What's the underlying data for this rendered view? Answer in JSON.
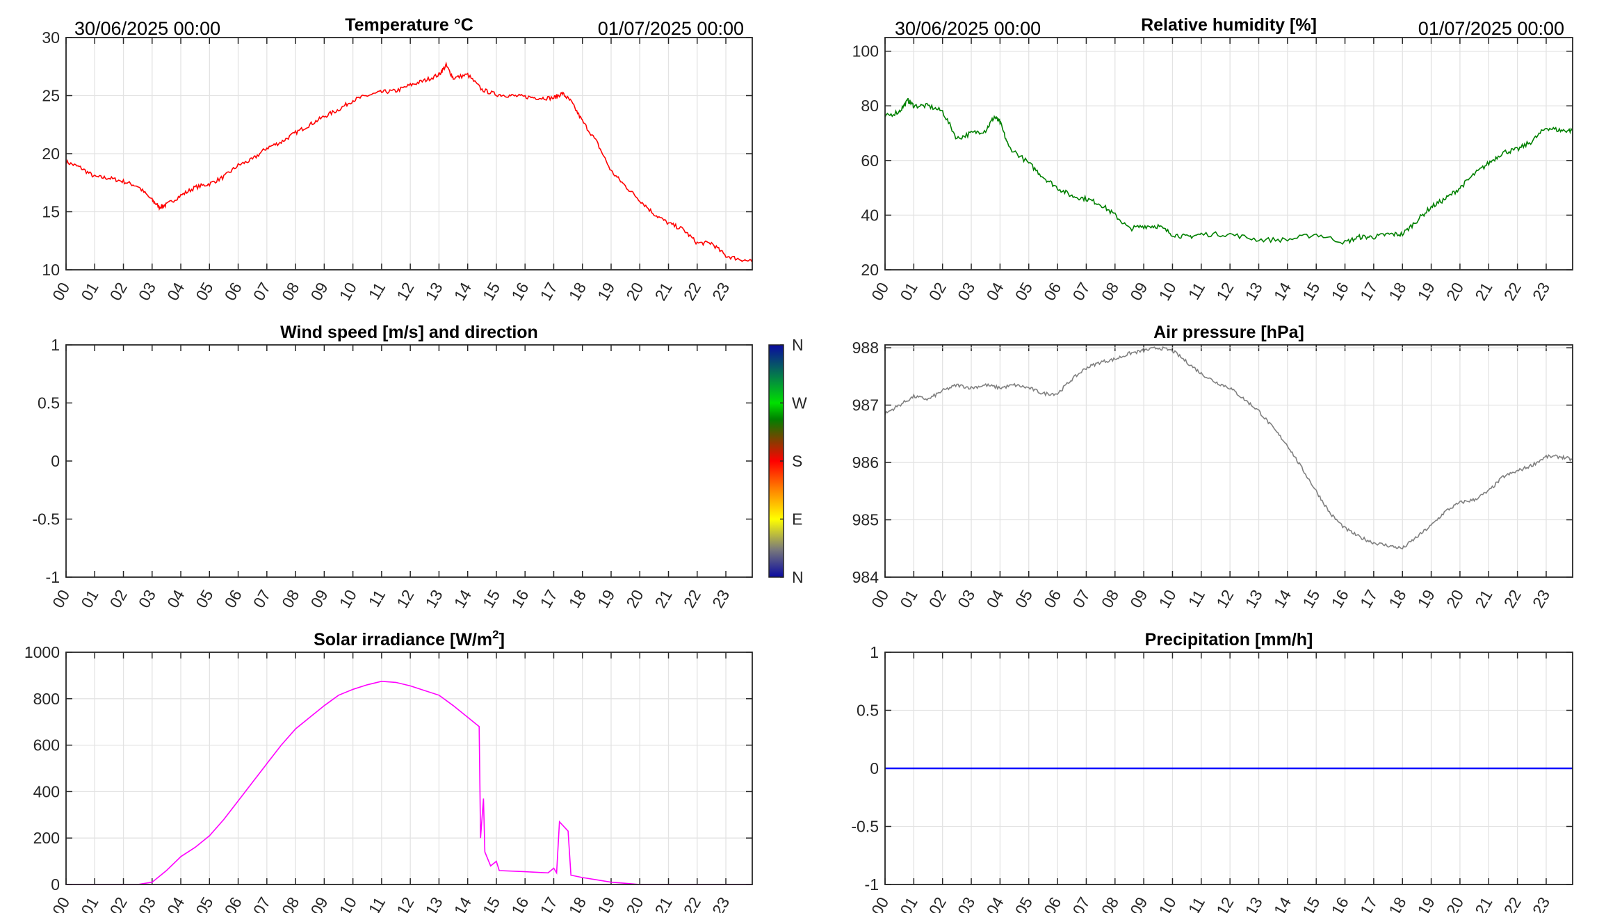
{
  "header": {
    "start_date": "30/06/2025 00:00",
    "end_date": "01/07/2025 00:00"
  },
  "hour_labels": [
    "00",
    "01",
    "02",
    "03",
    "04",
    "05",
    "06",
    "07",
    "08",
    "09",
    "10",
    "11",
    "12",
    "13",
    "14",
    "15",
    "16",
    "17",
    "18",
    "19",
    "20",
    "21",
    "22",
    "23"
  ],
  "colorbar": {
    "labels": [
      "N",
      "E",
      "S",
      "W",
      "N"
    ],
    "colors": [
      "#0a0aa0",
      "#7a7a7a",
      "#ffff00",
      "#ff8000",
      "#ff0000",
      "#008000",
      "#00e000",
      "#0a0aa0"
    ]
  },
  "chart_data": [
    {
      "id": "temperature",
      "type": "line",
      "title": "Temperature °C",
      "title_sup": "",
      "ylim": [
        10,
        30
      ],
      "yticks": [
        10,
        15,
        20,
        25,
        30
      ],
      "ytick_labels": [
        "10",
        "15",
        "20",
        "25",
        "30"
      ],
      "xlim": [
        0,
        23.92
      ],
      "color": "#ff0000",
      "grid": true,
      "x": [
        0,
        0.5,
        1,
        1.5,
        2,
        2.5,
        3,
        3.25,
        3.5,
        4,
        4.5,
        5,
        5.5,
        6,
        6.5,
        7,
        7.5,
        8,
        8.5,
        9,
        9.5,
        10,
        10.5,
        11,
        11.5,
        12,
        12.5,
        13,
        13.25,
        13.5,
        14,
        14.5,
        15,
        15.5,
        16,
        16.5,
        17,
        17.3,
        17.6,
        18,
        18.5,
        19,
        19.5,
        20,
        20.5,
        21,
        21.5,
        22,
        22.5,
        23,
        23.5,
        23.9
      ],
      "y": [
        19.3,
        18.8,
        18.0,
        17.9,
        17.6,
        17.2,
        16.0,
        15.4,
        15.6,
        16.4,
        17.1,
        17.4,
        18.0,
        19.0,
        19.5,
        20.5,
        21.0,
        21.8,
        22.5,
        23.2,
        23.8,
        24.6,
        25.0,
        25.3,
        25.4,
        25.9,
        26.3,
        26.8,
        27.6,
        26.5,
        26.8,
        25.5,
        25.1,
        25.0,
        24.9,
        24.8,
        24.8,
        25.2,
        24.5,
        22.8,
        21.0,
        18.5,
        17.2,
        16.0,
        14.8,
        14.0,
        13.5,
        12.3,
        12.3,
        11.2,
        10.9,
        10.7
      ]
    },
    {
      "id": "humidity",
      "type": "line",
      "title": "Relative humidity [%]",
      "title_sup": "",
      "ylim": [
        20,
        105
      ],
      "yticks": [
        20,
        40,
        60,
        80,
        100
      ],
      "ytick_labels": [
        "20",
        "40",
        "60",
        "80",
        "100"
      ],
      "xlim": [
        0,
        23.92
      ],
      "color": "#008000",
      "grid": true,
      "x": [
        0,
        0.5,
        0.8,
        1,
        1.5,
        2,
        2.5,
        3,
        3.5,
        3.8,
        4,
        4.3,
        5,
        5.5,
        6,
        6.5,
        7,
        7.5,
        8,
        8.5,
        9,
        9.5,
        10,
        10.5,
        11,
        12,
        13,
        14,
        15,
        16,
        16.5,
        17,
        17.5,
        18,
        18.5,
        19,
        19.5,
        20,
        20.5,
        21,
        21.5,
        22,
        22.5,
        23,
        23.5,
        23.9
      ],
      "y": [
        76,
        78,
        82,
        80,
        80,
        78,
        68,
        70,
        71,
        76,
        74,
        65,
        59,
        54,
        50,
        47,
        46,
        44,
        40,
        35,
        36,
        36,
        33,
        32,
        33,
        33,
        31,
        31,
        33,
        30,
        32,
        32,
        33,
        33,
        38,
        43,
        46,
        50,
        55,
        59,
        63,
        64,
        67,
        72,
        71,
        71
      ]
    },
    {
      "id": "wind",
      "type": "line",
      "title": "Wind speed [m/s] and direction",
      "title_sup": "",
      "ylim": [
        -1,
        1
      ],
      "yticks": [
        -1,
        -0.5,
        0,
        0.5,
        1
      ],
      "ytick_labels": [
        "-1",
        "-0.5",
        "0",
        "0.5",
        "1"
      ],
      "xlim": [
        0,
        23.92
      ],
      "color": "#000000",
      "grid": false,
      "x": [],
      "y": []
    },
    {
      "id": "pressure",
      "type": "line",
      "title": "Air pressure [hPa]",
      "title_sup": "",
      "ylim": [
        984,
        988.05
      ],
      "yticks": [
        984,
        985,
        986,
        987,
        988
      ],
      "ytick_labels": [
        "984",
        "985",
        "986",
        "987",
        "988"
      ],
      "xlim": [
        0,
        23.92
      ],
      "color": "#808080",
      "grid": true,
      "x": [
        0,
        0.5,
        1,
        1.5,
        2,
        2.5,
        3,
        3.5,
        4,
        4.5,
        5,
        5.5,
        6,
        6.5,
        7,
        7.5,
        8,
        8.5,
        9,
        9.5,
        10,
        10.5,
        11,
        11.5,
        12,
        12.5,
        13,
        13.5,
        14,
        14.5,
        15,
        15.5,
        16,
        16.5,
        17,
        17.5,
        18,
        18.5,
        19,
        19.5,
        20,
        20.5,
        21,
        21.5,
        22,
        22.5,
        23,
        23.5,
        23.9
      ],
      "y": [
        986.85,
        987.0,
        987.15,
        987.1,
        987.25,
        987.35,
        987.3,
        987.35,
        987.3,
        987.35,
        987.3,
        987.2,
        987.2,
        987.45,
        987.65,
        987.75,
        987.8,
        987.9,
        987.95,
        988.0,
        987.95,
        987.75,
        987.55,
        987.4,
        987.3,
        987.1,
        986.9,
        986.6,
        986.3,
        985.9,
        985.5,
        985.1,
        984.85,
        984.7,
        984.6,
        984.55,
        984.5,
        984.7,
        984.9,
        985.15,
        985.3,
        985.35,
        985.5,
        985.75,
        985.85,
        985.95,
        986.1,
        986.1,
        986.05
      ]
    },
    {
      "id": "solar",
      "type": "line",
      "title": "Solar irradiance [W/m",
      "title_sup": "2",
      "title_end": "]",
      "ylim": [
        0,
        1000
      ],
      "yticks": [
        0,
        200,
        400,
        600,
        800,
        1000
      ],
      "ytick_labels": [
        "0",
        "200",
        "400",
        "600",
        "800",
        "1000"
      ],
      "xlim": [
        0,
        23.92
      ],
      "color": "#ff00ff",
      "grid": true,
      "x": [
        0,
        2.5,
        3,
        3.5,
        4,
        4.5,
        5,
        5.5,
        6,
        6.5,
        7,
        7.5,
        8,
        8.5,
        9,
        9.5,
        10,
        10.5,
        11,
        11.5,
        12,
        12.5,
        13,
        13.5,
        14,
        14.4,
        14.45,
        14.55,
        14.6,
        14.8,
        15,
        15.1,
        16,
        16.8,
        17,
        17.1,
        17.2,
        17.5,
        17.6,
        18,
        18.5,
        19,
        19.5,
        20,
        23.9
      ],
      "y": [
        0,
        0,
        10,
        60,
        120,
        160,
        210,
        280,
        360,
        440,
        520,
        600,
        670,
        720,
        770,
        815,
        840,
        860,
        875,
        870,
        855,
        835,
        815,
        770,
        720,
        680,
        200,
        370,
        140,
        80,
        100,
        60,
        55,
        50,
        70,
        50,
        270,
        230,
        40,
        30,
        20,
        10,
        5,
        0,
        0
      ]
    },
    {
      "id": "precipitation",
      "type": "line",
      "title": "Precipitation [mm/h]",
      "title_sup": "",
      "ylim": [
        -1,
        1
      ],
      "yticks": [
        -1,
        -0.5,
        0,
        0.5,
        1
      ],
      "ytick_labels": [
        "-1",
        "-0.5",
        "0",
        "0.5",
        "1"
      ],
      "xlim": [
        0,
        23.92
      ],
      "color": "#0000ff",
      "grid": true,
      "x": [
        0,
        23.92
      ],
      "y": [
        0,
        0
      ]
    }
  ]
}
